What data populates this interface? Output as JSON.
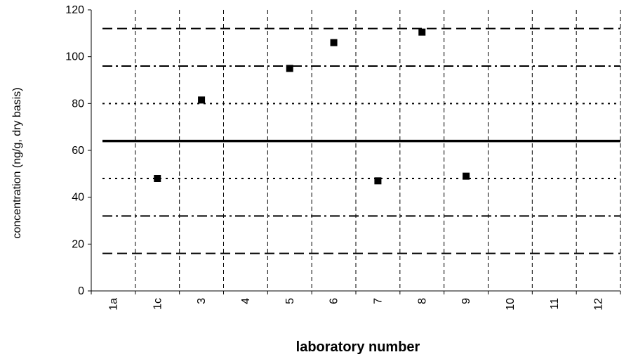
{
  "chart_data": {
    "type": "scatter",
    "title": "",
    "xlabel": "laboratory number",
    "ylabel": "concentration (ng/g, dry basis)",
    "categories": [
      "1a",
      "1c",
      "3",
      "4",
      "5",
      "6",
      "7",
      "8",
      "9",
      "10",
      "11",
      "12"
    ],
    "ylim": [
      0,
      120
    ],
    "yticks": [
      0,
      20,
      40,
      60,
      80,
      100,
      120
    ],
    "grid": {
      "vertical": true,
      "horizontal": false
    },
    "series": [
      {
        "marker": "square",
        "color": "#000000",
        "points": [
          {
            "x": "1c",
            "y": 48
          },
          {
            "x": "3",
            "y": 81.5
          },
          {
            "x": "5",
            "y": 95
          },
          {
            "x": "6",
            "y": 106
          },
          {
            "x": "7",
            "y": 47
          },
          {
            "x": "8",
            "y": 110.5
          },
          {
            "x": "9",
            "y": 49
          }
        ]
      }
    ],
    "reference_lines": [
      {
        "y": 64,
        "style": "solid"
      },
      {
        "y": 80,
        "style": "dotted"
      },
      {
        "y": 48,
        "style": "dotted"
      },
      {
        "y": 96,
        "style": "dash-dot"
      },
      {
        "y": 32,
        "style": "dash-dot"
      },
      {
        "y": 112,
        "style": "dashed"
      },
      {
        "y": 16,
        "style": "dashed"
      }
    ]
  }
}
